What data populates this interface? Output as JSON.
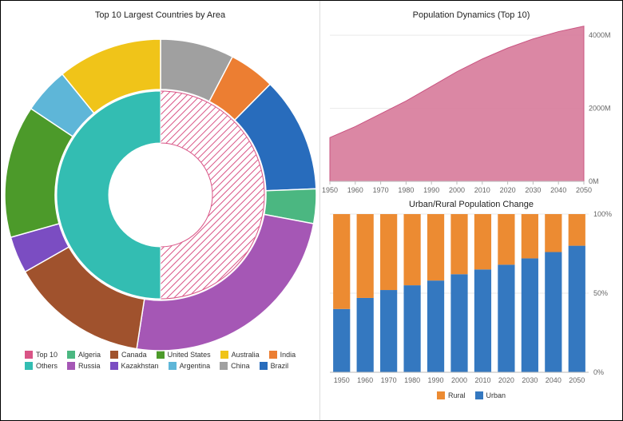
{
  "donut_chart": {
    "title": "Top 10 Largest Countries by Area",
    "inner": {
      "slices": [
        {
          "name": "Top 10",
          "value": 50,
          "color": "#d95486",
          "pattern": "hatch"
        },
        {
          "name": "Others",
          "value": 50,
          "color": "#33bdb2",
          "pattern": "solid"
        }
      ]
    },
    "outer": {
      "slices": [
        {
          "name": "China",
          "value": 6.4,
          "color": "#a0a0a0"
        },
        {
          "name": "India",
          "value": 4.0,
          "color": "#ec7e32"
        },
        {
          "name": "Brazil",
          "value": 10.0,
          "color": "#286cbc"
        },
        {
          "name": "Algeria",
          "value": 3.0,
          "color": "#4bb781"
        },
        {
          "name": "Russia",
          "value": 20.5,
          "color": "#a557b5"
        },
        {
          "name": "Canada",
          "value": 12.0,
          "color": "#a0522d"
        },
        {
          "name": "Kazakhstan",
          "value": 3.2,
          "color": "#7b4dc2"
        },
        {
          "name": "United States",
          "value": 11.5,
          "color": "#4c9a2a"
        },
        {
          "name": "Argentina",
          "value": 4.0,
          "color": "#5eb6d8"
        },
        {
          "name": "Australia",
          "value": 9.1,
          "color": "#f0c419"
        }
      ]
    },
    "legend_order": [
      "Top 10",
      "Algeria",
      "Canada",
      "United States",
      "Australia",
      "India",
      "Others",
      "Russia",
      "Kazakhstan",
      "Argentina",
      "China",
      "Brazil"
    ],
    "legend_colors": {
      "Top 10": "#d95486",
      "Others": "#33bdb2",
      "Algeria": "#4bb781",
      "Canada": "#a0522d",
      "United States": "#4c9a2a",
      "Australia": "#f0c419",
      "India": "#ec7e32",
      "Russia": "#a557b5",
      "Kazakhstan": "#7b4dc2",
      "Argentina": "#5eb6d8",
      "China": "#a0a0a0",
      "Brazil": "#286cbc"
    }
  },
  "area_chart": {
    "title": "Population Dynamics (Top 10)",
    "x": [
      1950,
      1960,
      1970,
      1980,
      1990,
      2000,
      2010,
      2020,
      2030,
      2040,
      2050
    ],
    "y": [
      1200,
      1500,
      1850,
      2200,
      2600,
      3000,
      3350,
      3650,
      3900,
      4100,
      4250
    ],
    "ylim": [
      0,
      4200
    ],
    "yticks": [
      0,
      2000,
      4000
    ],
    "ytick_labels": [
      "0M",
      "2000M",
      "4000M"
    ],
    "fill_color": "#d77a9a",
    "line_color": "#c95481",
    "grid_color": "#e9e9e9"
  },
  "bar_chart": {
    "title": "Urban/Rural Population Change",
    "x": [
      1950,
      1960,
      1970,
      1980,
      1990,
      2000,
      2010,
      2020,
      2030,
      2040,
      2050
    ],
    "urban": [
      40,
      47,
      52,
      55,
      58,
      62,
      65,
      68,
      72,
      76,
      80
    ],
    "rural": [
      60,
      53,
      48,
      45,
      42,
      38,
      35,
      32,
      28,
      24,
      20
    ],
    "yticks": [
      0,
      50,
      100
    ],
    "ytick_labels": [
      "0%",
      "50%",
      "100%"
    ],
    "colors": {
      "Urban": "#3478c0",
      "Rural": "#ec8b32"
    },
    "series_order": [
      "Rural",
      "Urban"
    ],
    "bar_width": 0.72
  },
  "fonts": {
    "title": 11,
    "axis": 9
  }
}
